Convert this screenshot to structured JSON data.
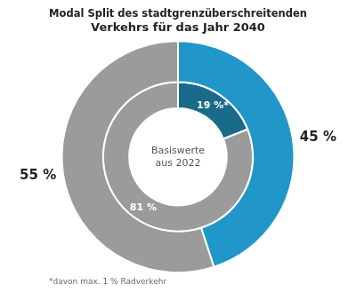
{
  "chart_data": {
    "type": "doughnut",
    "title": "Modal Split des stadtgrenzüberschreitenden\nVerkehrs für das Jahr 2040",
    "subtitle": "*davon max. 1 % Radverkehr",
    "annotations": [
      "Basiswerte",
      "aus 2022"
    ],
    "series": [
      {
        "values": [
          45,
          55
        ],
        "colors": [
          "#2196c8",
          "#9b9b9b"
        ],
        "value_labels": [
          "45 %",
          "55 %"
        ]
      },
      {
        "values": [
          19,
          81
        ],
        "colors": [
          "#1a6a8a",
          "#9b9b9b"
        ],
        "value_labels": [
          "19 %*",
          "81 %"
        ]
      }
    ],
    "data_labels": true
  }
}
